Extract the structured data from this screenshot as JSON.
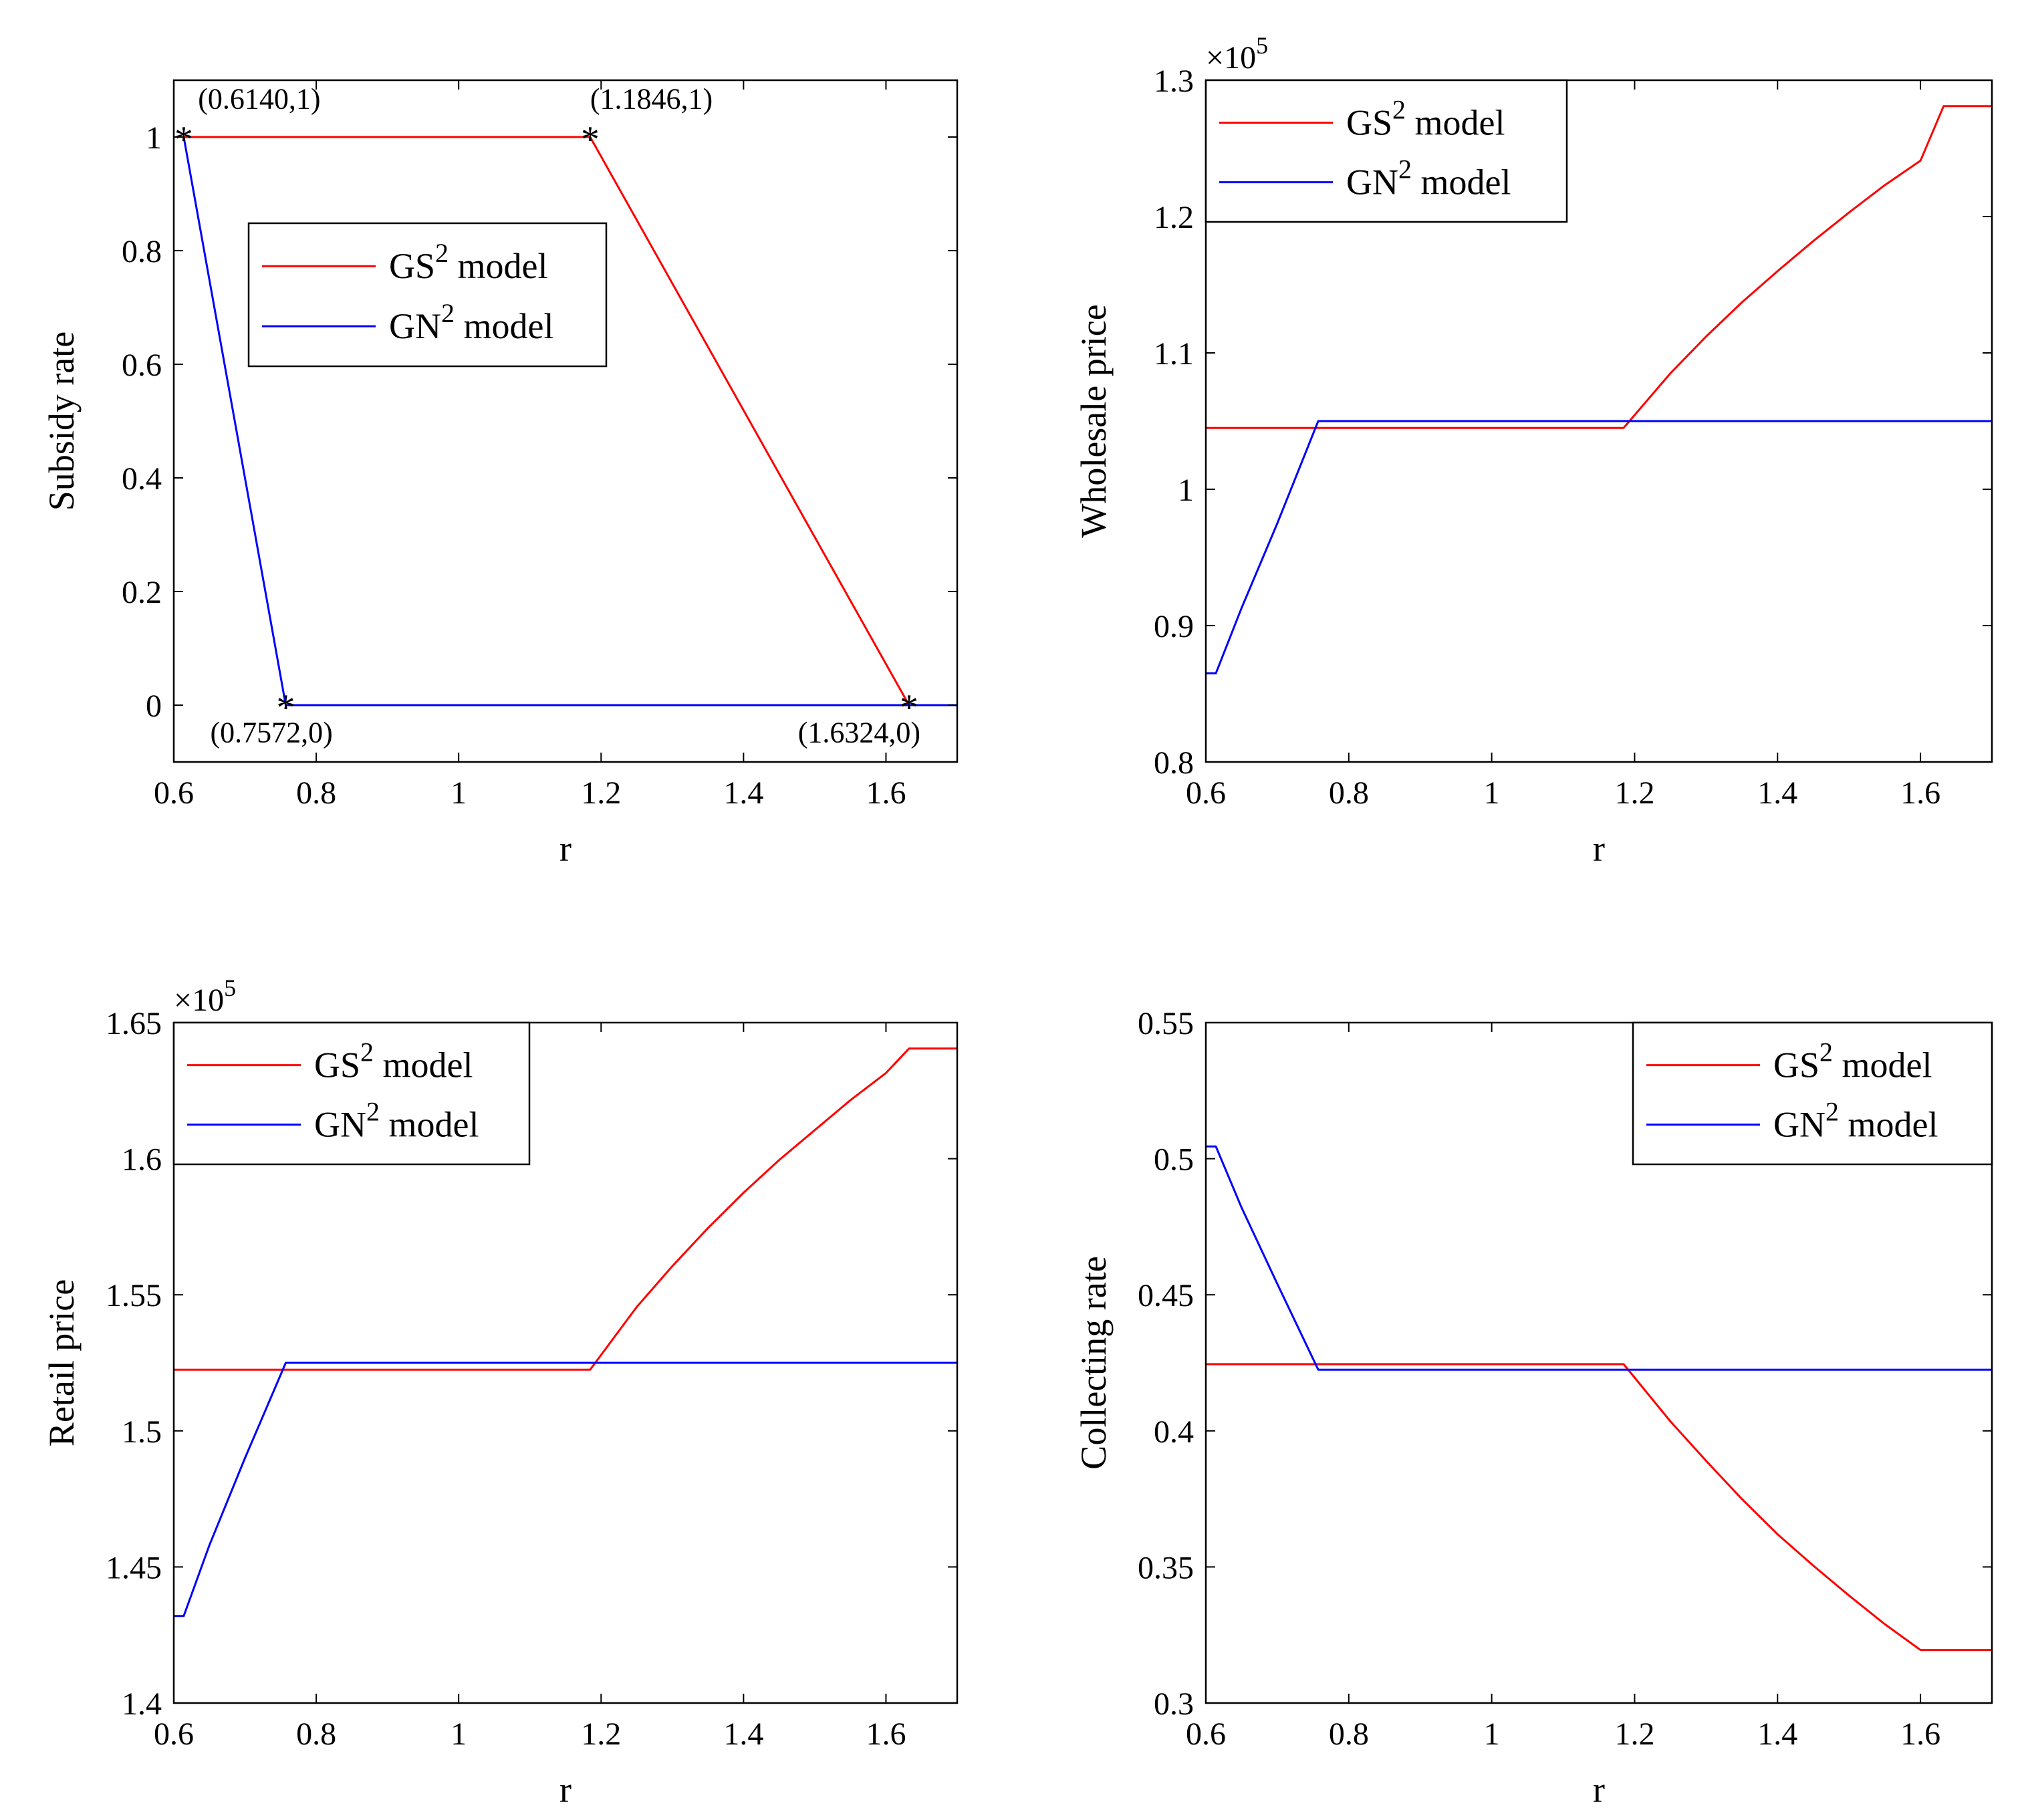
{
  "colors": {
    "gs": "#ff0000",
    "gn": "#0000ff",
    "axis": "#000000"
  },
  "chart_data": [
    {
      "type": "line",
      "id": "subsidy",
      "xlabel": "r",
      "ylabel": "Subsidy rate",
      "xlim": [
        0.6,
        1.7
      ],
      "ylim": [
        -0.1,
        1.1
      ],
      "xticks": [
        0.6,
        0.8,
        1.0,
        1.2,
        1.4,
        1.6
      ],
      "xtick_labels": [
        "0.6",
        "0.8",
        "1",
        "1.2",
        "1.4",
        "1.6"
      ],
      "yticks": [
        0,
        0.2,
        0.4,
        0.6,
        0.8,
        1.0
      ],
      "ytick_labels": [
        "0",
        "0.2",
        "0.4",
        "0.6",
        "0.8",
        "1"
      ],
      "multiplier": "",
      "legend": {
        "position": "upper-middle",
        "entries": [
          {
            "base": "GS",
            "sup": "2",
            "rest": " model"
          },
          {
            "base": "GN",
            "sup": "2",
            "rest": " model"
          }
        ]
      },
      "series": [
        {
          "name": "GS2 model",
          "color": "#ff0000",
          "x": [
            0.614,
            1.1846,
            1.6324,
            1.7
          ],
          "y": [
            1,
            1,
            0,
            0
          ]
        },
        {
          "name": "GN2 model",
          "color": "#0000ff",
          "x": [
            0.614,
            0.7572,
            1.7
          ],
          "y": [
            1,
            0,
            0
          ]
        }
      ],
      "annotations": [
        {
          "x": 0.614,
          "y": 1,
          "label": "(0.6140,1)",
          "anchor": "start",
          "dx": 0.02,
          "dy": 0.05
        },
        {
          "x": 1.1846,
          "y": 1,
          "label": "(1.1846,1)",
          "anchor": "start",
          "dx": 0.0,
          "dy": 0.05
        },
        {
          "x": 0.7572,
          "y": 0,
          "label": "(0.7572,0)",
          "anchor": "middle",
          "dx": -0.02,
          "dy": -0.065
        },
        {
          "x": 1.6324,
          "y": 0,
          "label": "(1.6324,0)",
          "anchor": "middle",
          "dx": -0.07,
          "dy": -0.065
        }
      ]
    },
    {
      "type": "line",
      "id": "wholesale",
      "xlabel": "r",
      "ylabel": "Wholesale price",
      "xlim": [
        0.6,
        1.7
      ],
      "ylim": [
        0.8,
        1.3
      ],
      "xticks": [
        0.6,
        0.8,
        1.0,
        1.2,
        1.4,
        1.6
      ],
      "xtick_labels": [
        "0.6",
        "0.8",
        "1",
        "1.2",
        "1.4",
        "1.6"
      ],
      "yticks": [
        0.8,
        0.9,
        1.0,
        1.1,
        1.2,
        1.3
      ],
      "ytick_labels": [
        "0.8",
        "0.9",
        "1",
        "1.1",
        "1.2",
        "1.3"
      ],
      "multiplier": "×10",
      "multiplier_exp": "5",
      "legend": {
        "position": "top-left",
        "entries": [
          {
            "base": "GS",
            "sup": "2",
            "rest": " model"
          },
          {
            "base": "GN",
            "sup": "2",
            "rest": " model"
          }
        ]
      },
      "series": [
        {
          "name": "GS2 model",
          "color": "#ff0000",
          "x": [
            0.6,
            1.1846,
            1.25,
            1.3,
            1.35,
            1.4,
            1.45,
            1.5,
            1.55,
            1.6,
            1.6324,
            1.7
          ],
          "y": [
            1.045,
            1.045,
            1.085,
            1.112,
            1.137,
            1.16,
            1.182,
            1.203,
            1.223,
            1.241,
            1.281,
            1.281
          ]
        },
        {
          "name": "GN2 model",
          "color": "#0000ff",
          "x": [
            0.6,
            0.614,
            0.65,
            0.7,
            0.7572,
            1.7
          ],
          "y": [
            0.865,
            0.865,
            0.913,
            0.975,
            1.05,
            1.05
          ]
        }
      ]
    },
    {
      "type": "line",
      "id": "retail",
      "xlabel": "r",
      "ylabel": "Retail price",
      "xlim": [
        0.6,
        1.7
      ],
      "ylim": [
        1.4,
        1.65
      ],
      "xticks": [
        0.6,
        0.8,
        1.0,
        1.2,
        1.4,
        1.6
      ],
      "xtick_labels": [
        "0.6",
        "0.8",
        "1",
        "1.2",
        "1.4",
        "1.6"
      ],
      "yticks": [
        1.4,
        1.45,
        1.5,
        1.55,
        1.6,
        1.65
      ],
      "ytick_labels": [
        "1.4",
        "1.45",
        "1.5",
        "1.55",
        "1.6",
        "1.65"
      ],
      "multiplier": "×10",
      "multiplier_exp": "5",
      "legend": {
        "position": "top-left",
        "entries": [
          {
            "base": "GS",
            "sup": "2",
            "rest": " model"
          },
          {
            "base": "GN",
            "sup": "2",
            "rest": " model"
          }
        ]
      },
      "series": [
        {
          "name": "GS2 model",
          "color": "#ff0000",
          "x": [
            0.6,
            1.1846,
            1.25,
            1.3,
            1.35,
            1.4,
            1.45,
            1.5,
            1.55,
            1.6,
            1.6324,
            1.7
          ],
          "y": [
            1.5225,
            1.5225,
            1.5455,
            1.5605,
            1.5745,
            1.5875,
            1.5995,
            1.6105,
            1.6215,
            1.6315,
            1.6405,
            1.6405
          ]
        },
        {
          "name": "GN2 model",
          "color": "#0000ff",
          "x": [
            0.6,
            0.614,
            0.65,
            0.7,
            0.7572,
            1.7
          ],
          "y": [
            1.432,
            1.432,
            1.458,
            1.49,
            1.525,
            1.525
          ]
        }
      ]
    },
    {
      "type": "line",
      "id": "collecting",
      "xlabel": "r",
      "ylabel": "Collecting rate",
      "xlim": [
        0.6,
        1.7
      ],
      "ylim": [
        0.3,
        0.55
      ],
      "xticks": [
        0.6,
        0.8,
        1.0,
        1.2,
        1.4,
        1.6
      ],
      "xtick_labels": [
        "0.6",
        "0.8",
        "1",
        "1.2",
        "1.4",
        "1.6"
      ],
      "yticks": [
        0.3,
        0.35,
        0.4,
        0.45,
        0.5,
        0.55
      ],
      "ytick_labels": [
        "0.3",
        "0.35",
        "0.4",
        "0.45",
        "0.5",
        "0.55"
      ],
      "multiplier": "",
      "legend": {
        "position": "top-right",
        "entries": [
          {
            "base": "GS",
            "sup": "2",
            "rest": " model"
          },
          {
            "base": "GN",
            "sup": "2",
            "rest": " model"
          }
        ]
      },
      "series": [
        {
          "name": "GS2 model",
          "color": "#ff0000",
          "x": [
            0.6,
            1.1846,
            1.25,
            1.3,
            1.35,
            1.4,
            1.45,
            1.5,
            1.55,
            1.6,
            1.6324,
            1.7
          ],
          "y": [
            0.4245,
            0.4245,
            0.4035,
            0.389,
            0.375,
            0.362,
            0.3505,
            0.3395,
            0.329,
            0.3195,
            0.3195,
            0.3195
          ]
        },
        {
          "name": "GN2 model",
          "color": "#0000ff",
          "x": [
            0.6,
            0.614,
            0.65,
            0.7,
            0.7572,
            1.7
          ],
          "y": [
            0.5045,
            0.5045,
            0.482,
            0.454,
            0.4225,
            0.4225
          ]
        }
      ]
    }
  ]
}
